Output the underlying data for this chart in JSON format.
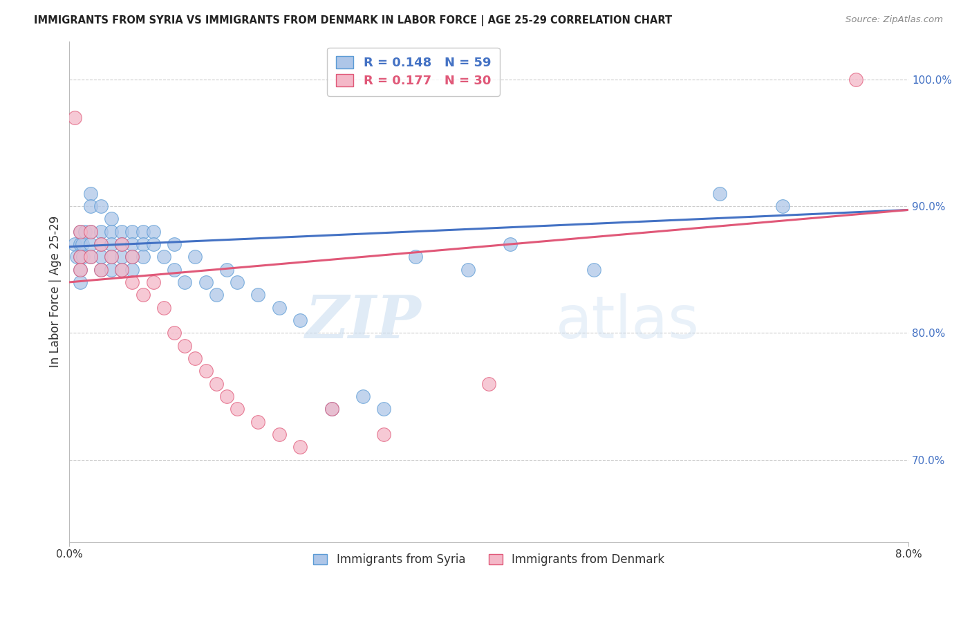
{
  "title": "IMMIGRANTS FROM SYRIA VS IMMIGRANTS FROM DENMARK IN LABOR FORCE | AGE 25-29 CORRELATION CHART",
  "source": "Source: ZipAtlas.com",
  "ylabel": "In Labor Force | Age 25-29",
  "ytick_vals": [
    0.7,
    0.8,
    0.9,
    1.0
  ],
  "ytick_labels": [
    "70.0%",
    "80.0%",
    "90.0%",
    "100.0%"
  ],
  "xlim": [
    0.0,
    0.08
  ],
  "ylim": [
    0.635,
    1.03
  ],
  "r_syria": 0.148,
  "n_syria": 59,
  "r_denmark": 0.177,
  "n_denmark": 30,
  "color_syria_fill": "#aec6e8",
  "color_syria_edge": "#5b9bd5",
  "color_denmark_fill": "#f4b8c8",
  "color_denmark_edge": "#e05878",
  "color_trend_syria": "#4472c4",
  "color_trend_denmark": "#e05878",
  "legend_label_syria": "Immigrants from Syria",
  "legend_label_denmark": "Immigrants from Denmark",
  "watermark_zip": "ZIP",
  "watermark_atlas": "atlas",
  "background_color": "#ffffff",
  "grid_color": "#cccccc",
  "syria_x": [
    0.0005,
    0.0007,
    0.001,
    0.001,
    0.001,
    0.001,
    0.001,
    0.0012,
    0.0013,
    0.0015,
    0.002,
    0.002,
    0.002,
    0.002,
    0.002,
    0.003,
    0.003,
    0.003,
    0.003,
    0.003,
    0.004,
    0.004,
    0.004,
    0.004,
    0.004,
    0.005,
    0.005,
    0.005,
    0.005,
    0.006,
    0.006,
    0.006,
    0.006,
    0.007,
    0.007,
    0.007,
    0.008,
    0.008,
    0.009,
    0.01,
    0.01,
    0.011,
    0.012,
    0.013,
    0.014,
    0.015,
    0.016,
    0.018,
    0.02,
    0.022,
    0.025,
    0.028,
    0.03,
    0.033,
    0.038,
    0.042,
    0.05,
    0.062,
    0.068
  ],
  "syria_y": [
    0.87,
    0.86,
    0.88,
    0.87,
    0.86,
    0.85,
    0.84,
    0.87,
    0.86,
    0.88,
    0.91,
    0.9,
    0.88,
    0.87,
    0.86,
    0.9,
    0.88,
    0.87,
    0.86,
    0.85,
    0.89,
    0.88,
    0.87,
    0.86,
    0.85,
    0.88,
    0.87,
    0.86,
    0.85,
    0.88,
    0.87,
    0.86,
    0.85,
    0.88,
    0.87,
    0.86,
    0.88,
    0.87,
    0.86,
    0.87,
    0.85,
    0.84,
    0.86,
    0.84,
    0.83,
    0.85,
    0.84,
    0.83,
    0.82,
    0.81,
    0.74,
    0.75,
    0.74,
    0.86,
    0.85,
    0.87,
    0.85,
    0.91,
    0.9
  ],
  "denmark_x": [
    0.0005,
    0.001,
    0.001,
    0.001,
    0.002,
    0.002,
    0.003,
    0.003,
    0.004,
    0.005,
    0.005,
    0.006,
    0.006,
    0.007,
    0.008,
    0.009,
    0.01,
    0.011,
    0.012,
    0.013,
    0.014,
    0.015,
    0.016,
    0.018,
    0.02,
    0.022,
    0.025,
    0.03,
    0.04,
    0.075
  ],
  "denmark_y": [
    0.97,
    0.88,
    0.86,
    0.85,
    0.88,
    0.86,
    0.87,
    0.85,
    0.86,
    0.87,
    0.85,
    0.86,
    0.84,
    0.83,
    0.84,
    0.82,
    0.8,
    0.79,
    0.78,
    0.77,
    0.76,
    0.75,
    0.74,
    0.73,
    0.72,
    0.71,
    0.74,
    0.72,
    0.76,
    1.0
  ]
}
